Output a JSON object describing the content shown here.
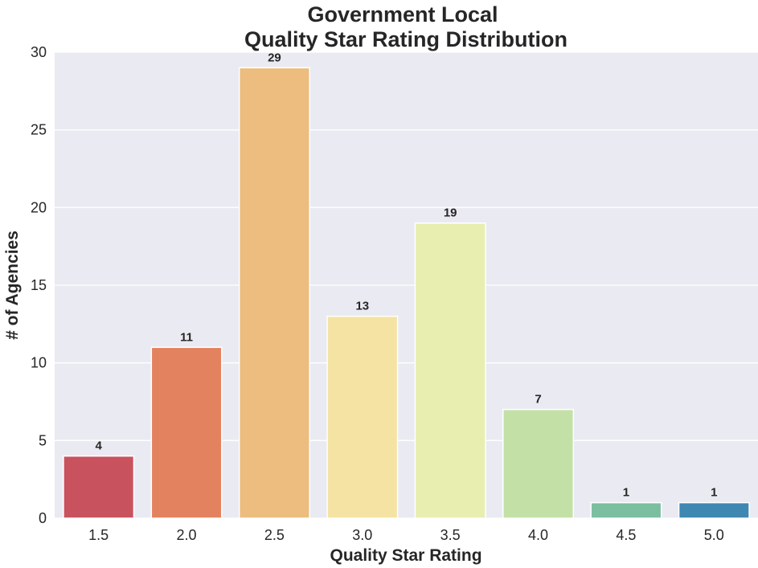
{
  "chart_data": {
    "type": "bar",
    "title": "Government Local",
    "subtitle": "Quality Star Rating Distribution",
    "xlabel": "Quality Star Rating",
    "ylabel": "# of Agencies",
    "categories": [
      "1.5",
      "2.0",
      "2.5",
      "3.0",
      "3.5",
      "4.0",
      "4.5",
      "5.0"
    ],
    "values": [
      4,
      11,
      29,
      13,
      19,
      7,
      1,
      1
    ],
    "data_labels": [
      "4",
      "11",
      "29",
      "13",
      "19",
      "7",
      "1",
      "1"
    ],
    "colors": [
      "#c9525f",
      "#e3825e",
      "#ecbd7f",
      "#f4e3a2",
      "#e8eeb0",
      "#c3e0a6",
      "#7bbfa0",
      "#3f88b2"
    ],
    "ylim": [
      0,
      30
    ],
    "yticks": [
      0,
      5,
      10,
      15,
      20,
      25,
      30
    ],
    "ytick_labels": [
      "0",
      "5",
      "10",
      "15",
      "20",
      "25",
      "30"
    ],
    "grid": true,
    "background_color": "#eaeaf2",
    "grid_color": "#ffffff"
  }
}
